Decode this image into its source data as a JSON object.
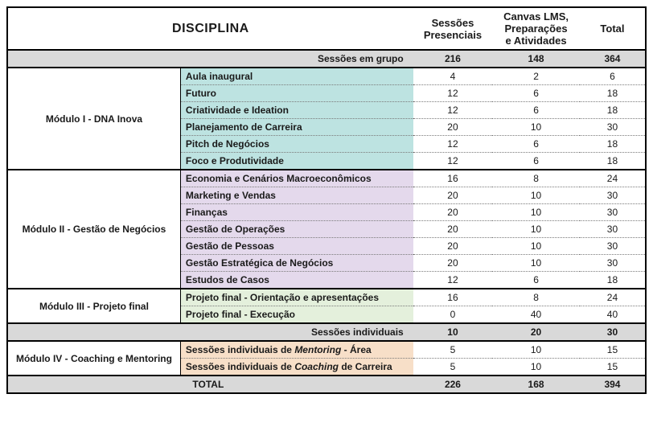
{
  "header": {
    "c1": "",
    "title": "DISCIPLINA",
    "col_sessoes": "Sessões\nPresenciais",
    "col_canvas": "Canvas LMS,\nPreparações\ne Atividades",
    "col_total": "Total"
  },
  "bands": {
    "grupo": {
      "label": "Sessões em grupo",
      "n1": "216",
      "n2": "148",
      "n3": "364"
    },
    "individuais": {
      "label": "Sessões individuais",
      "n1": "10",
      "n2": "20",
      "n3": "30"
    },
    "total": {
      "label": "TOTAL",
      "n1": "226",
      "n2": "168",
      "n3": "394"
    }
  },
  "modules": {
    "m1": {
      "name": "Módulo I - DNA Inova",
      "bg": "bg-m1",
      "rows": [
        {
          "disc": "Aula inaugural",
          "n1": "4",
          "n2": "2",
          "n3": "6"
        },
        {
          "disc": "Futuro",
          "n1": "12",
          "n2": "6",
          "n3": "18"
        },
        {
          "disc": "Criatividade e Ideation",
          "n1": "12",
          "n2": "6",
          "n3": "18"
        },
        {
          "disc": "Planejamento de Carreira",
          "n1": "20",
          "n2": "10",
          "n3": "30"
        },
        {
          "disc": "Pitch de Negócios",
          "n1": "12",
          "n2": "6",
          "n3": "18"
        },
        {
          "disc": "Foco e Produtividade",
          "n1": "12",
          "n2": "6",
          "n3": "18"
        }
      ]
    },
    "m2": {
      "name": "Módulo II - Gestão de Negócios",
      "bg": "bg-m2",
      "rows": [
        {
          "disc": "Economia e Cenários Macroeconômicos",
          "n1": "16",
          "n2": "8",
          "n3": "24"
        },
        {
          "disc": "Marketing e Vendas",
          "n1": "20",
          "n2": "10",
          "n3": "30"
        },
        {
          "disc": "Finanças",
          "n1": "20",
          "n2": "10",
          "n3": "30"
        },
        {
          "disc": "Gestão de Operações",
          "n1": "20",
          "n2": "10",
          "n3": "30"
        },
        {
          "disc": "Gestão de Pessoas",
          "n1": "20",
          "n2": "10",
          "n3": "30"
        },
        {
          "disc": "Gestão Estratégica de Negócios",
          "n1": "20",
          "n2": "10",
          "n3": "30"
        },
        {
          "disc": "Estudos de Casos",
          "n1": "12",
          "n2": "6",
          "n3": "18"
        }
      ]
    },
    "m3": {
      "name": "Módulo III - Projeto final",
      "bg": "bg-m3",
      "rows": [
        {
          "disc": "Projeto final - Orientação e apresentações",
          "n1": "16",
          "n2": "8",
          "n3": "24"
        },
        {
          "disc": "Projeto final - Execução",
          "n1": "0",
          "n2": "40",
          "n3": "40"
        }
      ]
    },
    "m4": {
      "name": "Módulo IV - Coaching e Mentoring",
      "bg": "bg-m4",
      "rows": [
        {
          "disc_html": "Sessões individuais de <span class=\"italic\">Mentoring</span> - Área",
          "n1": "5",
          "n2": "10",
          "n3": "15"
        },
        {
          "disc_html": "Sessões individuais de <span class=\"italic\">Coaching</span> de Carreira",
          "n1": "5",
          "n2": "10",
          "n3": "15"
        }
      ]
    }
  },
  "styling": {
    "border_color": "#000000",
    "band_bg": "#d9d9d9",
    "m1_bg": "#bde3e1",
    "m2_bg": "#e4d9ec",
    "m3_bg": "#e4f0dc",
    "m4_bg": "#f7dfc8",
    "font_family": "Helvetica Neue, Arial, sans-serif",
    "base_font_size_pt": 12,
    "header_font_size_pt": 13,
    "title_font_size_pt": 16,
    "dotted_row_sep_color": "#7a7a7a"
  }
}
